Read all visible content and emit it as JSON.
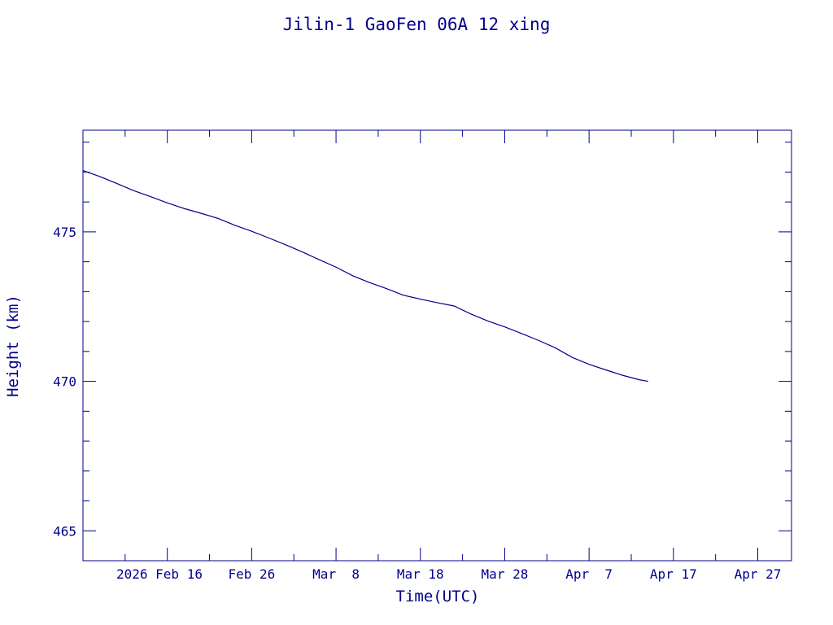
{
  "chart_data": {
    "type": "line",
    "title": "Jilin-1 GaoFen 06A 12 xing",
    "xlabel": "Time(UTC)",
    "ylabel": "Height (km)",
    "xlim": [
      "2026-02-06",
      "2026-05-01"
    ],
    "ylim": [
      464,
      478.4
    ],
    "x_ticks": [
      {
        "date": "2026-02-16",
        "label": "2026 Feb 16"
      },
      {
        "date": "2026-02-26",
        "label": "Feb 26"
      },
      {
        "date": "2026-03-08",
        "label": "Mar  8"
      },
      {
        "date": "2026-03-18",
        "label": "Mar 18"
      },
      {
        "date": "2026-03-28",
        "label": "Mar 28"
      },
      {
        "date": "2026-04-07",
        "label": "Apr  7"
      },
      {
        "date": "2026-04-17",
        "label": "Apr 17"
      },
      {
        "date": "2026-04-27",
        "label": "Apr 27"
      }
    ],
    "y_ticks": [
      465,
      470,
      475
    ],
    "y_minor_step": 1,
    "x_minor_step_days": 5,
    "color": "#00008b",
    "series": [
      {
        "points": [
          [
            "2026-02-06",
            477.05
          ],
          [
            "2026-02-08",
            476.85
          ],
          [
            "2026-02-10",
            476.62
          ],
          [
            "2026-02-12",
            476.38
          ],
          [
            "2026-02-14",
            476.18
          ],
          [
            "2026-02-16",
            475.97
          ],
          [
            "2026-02-18",
            475.78
          ],
          [
            "2026-02-20",
            475.62
          ],
          [
            "2026-02-22",
            475.45
          ],
          [
            "2026-02-24",
            475.22
          ],
          [
            "2026-02-26",
            475.02
          ],
          [
            "2026-02-28",
            474.8
          ],
          [
            "2026-03-02",
            474.57
          ],
          [
            "2026-03-04",
            474.33
          ],
          [
            "2026-03-06",
            474.07
          ],
          [
            "2026-03-08",
            473.82
          ],
          [
            "2026-03-10",
            473.53
          ],
          [
            "2026-03-12",
            473.3
          ],
          [
            "2026-03-14",
            473.1
          ],
          [
            "2026-03-16",
            472.88
          ],
          [
            "2026-03-18",
            472.75
          ],
          [
            "2026-03-20",
            472.63
          ],
          [
            "2026-03-22",
            472.52
          ],
          [
            "2026-03-24",
            472.25
          ],
          [
            "2026-03-26",
            472.02
          ],
          [
            "2026-03-28",
            471.82
          ],
          [
            "2026-03-30",
            471.6
          ],
          [
            "2026-04-01",
            471.37
          ],
          [
            "2026-04-03",
            471.12
          ],
          [
            "2026-04-05",
            470.8
          ],
          [
            "2026-04-07",
            470.57
          ],
          [
            "2026-04-09",
            470.38
          ],
          [
            "2026-04-11",
            470.2
          ],
          [
            "2026-04-13",
            470.05
          ],
          [
            "2026-04-14",
            470.0
          ]
        ]
      }
    ]
  }
}
